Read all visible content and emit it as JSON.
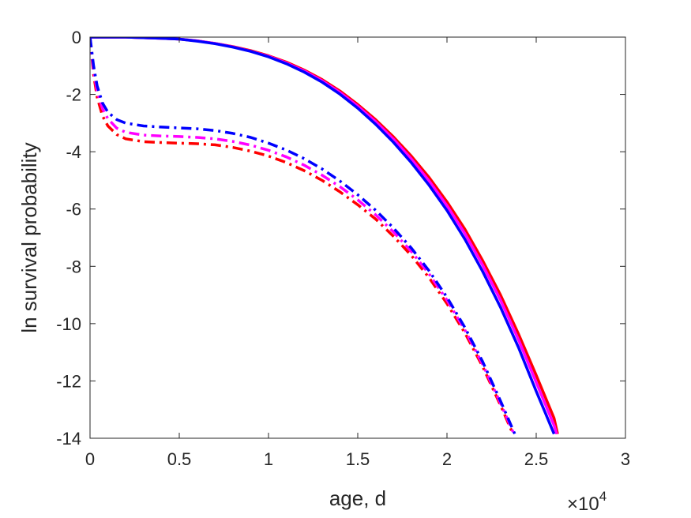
{
  "chart_data": {
    "type": "line",
    "title": "",
    "xlabel": "age, d",
    "ylabel": "ln survival probability",
    "x_multiplier": {
      "base": "10",
      "exponent": "4"
    },
    "xlim": [
      0,
      3
    ],
    "ylim": [
      -14,
      0
    ],
    "xticks": [
      0,
      0.5,
      1,
      1.5,
      2,
      2.5,
      3
    ],
    "xtick_labels": [
      "0",
      "0.5",
      "1",
      "1.5",
      "2",
      "2.5",
      "3"
    ],
    "yticks": [
      0,
      -2,
      -4,
      -6,
      -8,
      -10,
      -12,
      -14
    ],
    "ytick_labels": [
      "0",
      "-2",
      "-4",
      "-6",
      "-8",
      "-10",
      "-12",
      "-14"
    ],
    "grid": false,
    "legend": "none",
    "series": [
      {
        "color": "#ff0000",
        "style": "solid",
        "x": [
          0,
          0.1,
          0.2,
          0.3,
          0.4,
          0.5,
          0.6,
          0.7,
          0.8,
          0.9,
          1.0,
          1.1,
          1.2,
          1.3,
          1.4,
          1.5,
          1.6,
          1.7,
          1.8,
          1.9,
          2.0,
          2.1,
          2.2,
          2.3,
          2.4,
          2.5,
          2.6,
          2.62
        ],
        "y": [
          0,
          0,
          0,
          -0.02,
          -0.04,
          -0.07,
          -0.13,
          -0.22,
          -0.33,
          -0.47,
          -0.65,
          -0.87,
          -1.15,
          -1.48,
          -1.88,
          -2.35,
          -2.88,
          -3.48,
          -4.15,
          -4.9,
          -5.75,
          -6.7,
          -7.8,
          -9.0,
          -10.35,
          -11.8,
          -13.3,
          -13.85
        ]
      },
      {
        "color": "#ff00ff",
        "style": "solid",
        "x": [
          0,
          0.1,
          0.2,
          0.3,
          0.4,
          0.5,
          0.6,
          0.7,
          0.8,
          0.9,
          1.0,
          1.1,
          1.2,
          1.3,
          1.4,
          1.5,
          1.6,
          1.7,
          1.8,
          1.9,
          2.0,
          2.1,
          2.2,
          2.3,
          2.4,
          2.5,
          2.6,
          2.615
        ],
        "y": [
          0,
          0,
          0,
          -0.02,
          -0.04,
          -0.07,
          -0.13,
          -0.22,
          -0.34,
          -0.49,
          -0.67,
          -0.9,
          -1.18,
          -1.52,
          -1.93,
          -2.41,
          -2.95,
          -3.56,
          -4.25,
          -5.02,
          -5.88,
          -6.85,
          -7.96,
          -9.18,
          -10.55,
          -12.05,
          -13.55,
          -13.85
        ]
      },
      {
        "color": "#0000ff",
        "style": "solid",
        "x": [
          0,
          0.1,
          0.2,
          0.3,
          0.4,
          0.5,
          0.6,
          0.7,
          0.8,
          0.9,
          1.0,
          1.1,
          1.2,
          1.3,
          1.4,
          1.5,
          1.6,
          1.7,
          1.8,
          1.9,
          2.0,
          2.1,
          2.2,
          2.3,
          2.4,
          2.5,
          2.55,
          2.6
        ],
        "y": [
          0,
          0,
          0,
          -0.02,
          -0.04,
          -0.07,
          -0.14,
          -0.23,
          -0.35,
          -0.5,
          -0.69,
          -0.93,
          -1.22,
          -1.57,
          -1.99,
          -2.48,
          -3.04,
          -3.67,
          -4.38,
          -5.17,
          -6.05,
          -7.05,
          -8.18,
          -9.43,
          -10.82,
          -12.36,
          -13.1,
          -13.85
        ]
      },
      {
        "color": "#ff0000",
        "style": "dashdot",
        "x": [
          0,
          0.01,
          0.02,
          0.04,
          0.07,
          0.1,
          0.15,
          0.2,
          0.3,
          0.4,
          0.5,
          0.6,
          0.7,
          0.8,
          0.9,
          1.0,
          1.1,
          1.2,
          1.3,
          1.4,
          1.5,
          1.6,
          1.7,
          1.8,
          1.9,
          2.0,
          2.1,
          2.2,
          2.3,
          2.37
        ],
        "y": [
          0,
          -0.7,
          -1.3,
          -2.1,
          -2.75,
          -3.1,
          -3.4,
          -3.55,
          -3.65,
          -3.68,
          -3.7,
          -3.72,
          -3.76,
          -3.85,
          -3.98,
          -4.15,
          -4.38,
          -4.66,
          -5.0,
          -5.4,
          -5.85,
          -6.35,
          -6.95,
          -7.62,
          -8.4,
          -9.3,
          -10.32,
          -11.5,
          -12.85,
          -13.85
        ]
      },
      {
        "color": "#ff00ff",
        "style": "dashdot",
        "x": [
          0,
          0.01,
          0.02,
          0.04,
          0.07,
          0.1,
          0.15,
          0.2,
          0.3,
          0.4,
          0.5,
          0.6,
          0.7,
          0.8,
          0.9,
          1.0,
          1.1,
          1.2,
          1.3,
          1.4,
          1.5,
          1.6,
          1.7,
          1.8,
          1.9,
          2.0,
          2.1,
          2.2,
          2.3,
          2.375
        ],
        "y": [
          0,
          -0.6,
          -1.15,
          -1.9,
          -2.5,
          -2.85,
          -3.18,
          -3.32,
          -3.42,
          -3.45,
          -3.47,
          -3.5,
          -3.55,
          -3.64,
          -3.77,
          -3.95,
          -4.18,
          -4.47,
          -4.82,
          -5.22,
          -5.68,
          -6.2,
          -6.8,
          -7.48,
          -8.27,
          -9.18,
          -10.22,
          -11.42,
          -12.78,
          -13.85
        ]
      },
      {
        "color": "#0000ff",
        "style": "dashdot",
        "x": [
          0,
          0.01,
          0.02,
          0.04,
          0.07,
          0.1,
          0.15,
          0.2,
          0.3,
          0.4,
          0.5,
          0.6,
          0.7,
          0.8,
          0.9,
          1.0,
          1.1,
          1.2,
          1.3,
          1.4,
          1.5,
          1.6,
          1.7,
          1.8,
          1.9,
          2.0,
          2.1,
          2.2,
          2.3,
          2.38
        ],
        "y": [
          0,
          -0.5,
          -1.0,
          -1.7,
          -2.3,
          -2.62,
          -2.88,
          -3.0,
          -3.1,
          -3.14,
          -3.17,
          -3.2,
          -3.26,
          -3.36,
          -3.5,
          -3.7,
          -3.94,
          -4.24,
          -4.6,
          -5.02,
          -5.5,
          -6.04,
          -6.66,
          -7.36,
          -8.16,
          -9.08,
          -10.13,
          -11.33,
          -12.7,
          -13.85
        ]
      }
    ]
  }
}
